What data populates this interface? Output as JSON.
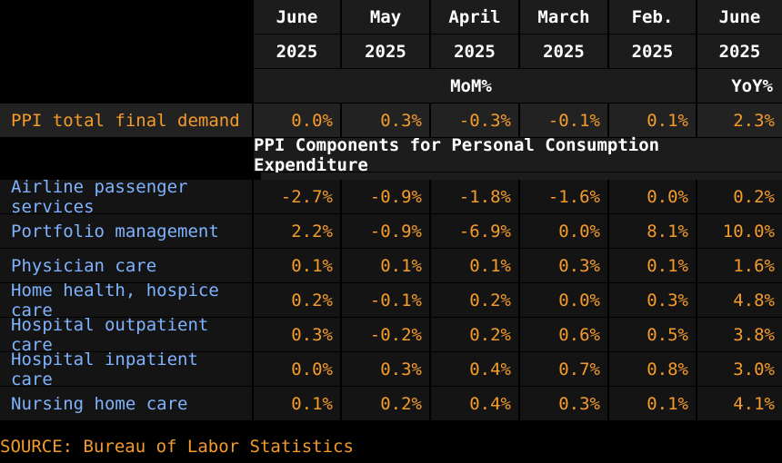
{
  "chart_data": {
    "type": "table",
    "columns": [
      {
        "month": "June",
        "year": "2025"
      },
      {
        "month": "May",
        "year": "2025"
      },
      {
        "month": "April",
        "year": "2025"
      },
      {
        "month": "March",
        "year": "2025"
      },
      {
        "month": "Feb.",
        "year": "2025"
      },
      {
        "month": "June",
        "year": "2025"
      }
    ],
    "mom_label": "MoM%",
    "yoy_label": "YoY%",
    "ppi": {
      "label": "PPI total final demand",
      "values": [
        "0.0%",
        "0.3%",
        "-0.3%",
        "-0.1%",
        "0.1%",
        "2.3%"
      ]
    },
    "section_title": "PPI Components for Personal Consumption Expenditure",
    "rows": [
      {
        "label": "Airline passenger services",
        "values": [
          "-2.7%",
          "-0.9%",
          "-1.8%",
          "-1.6%",
          "0.0%",
          "0.2%"
        ]
      },
      {
        "label": "Portfolio management",
        "values": [
          "2.2%",
          "-0.9%",
          "-6.9%",
          "0.0%",
          "8.1%",
          "10.0%"
        ]
      },
      {
        "label": "Physician care",
        "values": [
          "0.1%",
          "0.1%",
          "0.1%",
          "0.3%",
          "0.1%",
          "1.6%"
        ]
      },
      {
        "label": "Home health, hospice care",
        "values": [
          "0.2%",
          "-0.1%",
          "0.2%",
          "0.0%",
          "0.3%",
          "4.8%"
        ]
      },
      {
        "label": "Hospital outpatient care",
        "values": [
          "0.3%",
          "-0.2%",
          "0.2%",
          "0.6%",
          "0.5%",
          "3.8%"
        ]
      },
      {
        "label": "Hospital inpatient care",
        "values": [
          "0.0%",
          "0.3%",
          "0.4%",
          "0.7%",
          "0.8%",
          "3.0%"
        ]
      },
      {
        "label": "Nursing home care",
        "values": [
          "0.1%",
          "0.2%",
          "0.4%",
          "0.3%",
          "0.1%",
          "4.1%"
        ]
      }
    ]
  },
  "source": "SOURCE: Bureau of Labor Statistics",
  "colors": {
    "accent": "#f49b2a",
    "label_blue": "#7fb3ff",
    "header_white": "#ffffff"
  }
}
